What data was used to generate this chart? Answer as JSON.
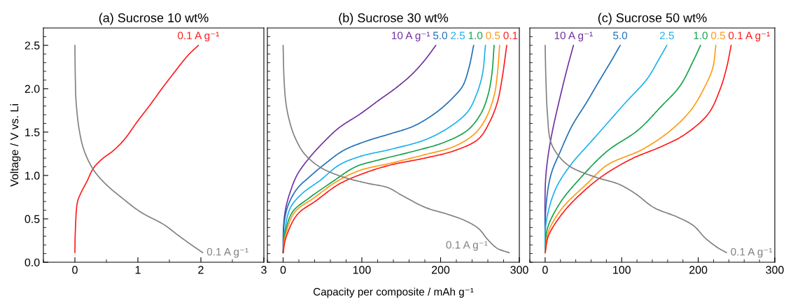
{
  "chart_data": [
    {
      "type": "line",
      "title": "(a) Sucrose 10 wt%",
      "ylabel": "Voltage / V vs. Li",
      "xlim": [
        -0.5,
        3
      ],
      "ylim": [
        0,
        2.7
      ],
      "xticks": [
        {
          "value": -0.5,
          "label": null
        },
        0,
        {
          "value": 0.5,
          "label": null
        },
        1,
        {
          "value": 1.5,
          "label": null
        },
        2,
        {
          "value": 2.5,
          "label": null
        },
        3
      ],
      "yticks": [
        {
          "value": 0,
          "label": "0.0"
        },
        {
          "value": 0.1,
          "label": null
        },
        {
          "value": 0.2,
          "label": null
        },
        {
          "value": 0.3,
          "label": null
        },
        {
          "value": 0.4,
          "label": null
        },
        {
          "value": 0.5,
          "label": "0.5"
        },
        {
          "value": 0.6,
          "label": null
        },
        {
          "value": 0.7,
          "label": null
        },
        {
          "value": 0.8,
          "label": null
        },
        {
          "value": 0.9,
          "label": null
        },
        {
          "value": 1,
          "label": "1.0"
        },
        {
          "value": 1.1,
          "label": null
        },
        {
          "value": 1.2,
          "label": null
        },
        {
          "value": 1.3,
          "label": null
        },
        {
          "value": 1.4,
          "label": null
        },
        {
          "value": 1.5,
          "label": "1.5"
        },
        {
          "value": 1.6,
          "label": null
        },
        {
          "value": 1.7,
          "label": null
        },
        {
          "value": 1.8,
          "label": null
        },
        {
          "value": 1.9,
          "label": null
        },
        {
          "value": 2,
          "label": "2.0"
        },
        {
          "value": 2.1,
          "label": null
        },
        {
          "value": 2.2,
          "label": null
        },
        {
          "value": 2.3,
          "label": null
        },
        {
          "value": 2.4,
          "label": null
        },
        {
          "value": 2.5,
          "label": "2.5"
        },
        {
          "value": 2.6,
          "label": null
        }
      ],
      "series": [
        {
          "name": "0.1 A g⁻¹",
          "color": "#ff1a1a",
          "x": [
            0,
            0.007,
            0.04,
            0.09,
            0.19,
            0.3,
            0.45,
            0.6,
            0.78,
            1.0,
            1.19,
            1.38,
            1.57,
            1.79,
            1.96
          ],
          "values": [
            0.11,
            0.36,
            0.69,
            0.79,
            0.93,
            1.09,
            1.2,
            1.28,
            1.41,
            1.63,
            1.81,
            2.0,
            2.18,
            2.38,
            2.5
          ]
        },
        {
          "name": "0.1 A g⁻¹",
          "color": "#808080",
          "x": [
            0,
            0.007,
            0.02,
            0.07,
            0.15,
            0.3,
            0.49,
            0.75,
            1.04,
            1.42,
            1.64,
            1.87,
            2.03
          ],
          "values": [
            2.5,
            2.11,
            1.84,
            1.52,
            1.28,
            1.06,
            0.9,
            0.74,
            0.58,
            0.43,
            0.31,
            0.19,
            0.11
          ]
        }
      ]
    },
    {
      "type": "line",
      "title": "(b) Sucrose 30 wt%",
      "xlabel": "Capacity per composite / mAh g⁻¹",
      "tick_labels": "x",
      "xlim": [
        -20,
        300
      ],
      "ylim": [
        0,
        2.7
      ],
      "xticks": [
        {
          "value": -20,
          "label": null
        },
        0,
        {
          "value": 20,
          "label": null
        },
        {
          "value": 40,
          "label": null
        },
        {
          "value": 60,
          "label": null
        },
        {
          "value": 80,
          "label": null
        },
        100,
        {
          "value": 120,
          "label": null
        },
        {
          "value": 140,
          "label": null
        },
        {
          "value": 160,
          "label": null
        },
        {
          "value": 180,
          "label": null
        },
        200,
        {
          "value": 220,
          "label": null
        },
        {
          "value": 240,
          "label": null
        },
        {
          "value": 260,
          "label": null
        },
        {
          "value": 280,
          "label": null
        },
        300
      ],
      "yticks": [
        {
          "value": 0,
          "label": null
        },
        {
          "value": 0.1,
          "label": null
        },
        {
          "value": 0.2,
          "label": null
        },
        {
          "value": 0.3,
          "label": null
        },
        {
          "value": 0.4,
          "label": null
        },
        {
          "value": 0.5,
          "label": null
        },
        {
          "value": 0.6,
          "label": null
        },
        {
          "value": 0.7,
          "label": null
        },
        {
          "value": 0.8,
          "label": null
        },
        {
          "value": 0.9,
          "label": null
        },
        {
          "value": 1,
          "label": null
        },
        {
          "value": 1.1,
          "label": null
        },
        {
          "value": 1.2,
          "label": null
        },
        {
          "value": 1.3,
          "label": null
        },
        {
          "value": 1.4,
          "label": null
        },
        {
          "value": 1.5,
          "label": null
        },
        {
          "value": 1.6,
          "label": null
        },
        {
          "value": 1.7,
          "label": null
        },
        {
          "value": 1.8,
          "label": null
        },
        {
          "value": 1.9,
          "label": null
        },
        {
          "value": 2,
          "label": null
        },
        {
          "value": 2.1,
          "label": null
        },
        {
          "value": 2.2,
          "label": null
        },
        {
          "value": 2.3,
          "label": null
        },
        {
          "value": 2.4,
          "label": null
        },
        {
          "value": 2.5,
          "label": null
        },
        {
          "value": 2.6,
          "label": null
        }
      ],
      "series": [
        {
          "name": "10 A g⁻¹",
          "color": "#7030a0",
          "x": [
            0,
            0.6,
            3.5,
            9.4,
            18,
            33,
            51,
            71,
            98,
            122,
            142,
            163,
            180,
            194
          ],
          "values": [
            0.11,
            0.42,
            0.63,
            0.82,
            1.01,
            1.2,
            1.38,
            1.55,
            1.71,
            1.87,
            2.0,
            2.16,
            2.33,
            2.5
          ]
        },
        {
          "name": "5.0",
          "color": "#1f6fb8",
          "x": [
            0,
            1.2,
            6.5,
            18,
            33,
            54,
            77,
            107,
            136,
            166,
            195,
            216,
            228,
            236,
            242
          ],
          "values": [
            0.11,
            0.44,
            0.66,
            0.85,
            0.98,
            1.14,
            1.29,
            1.4,
            1.48,
            1.57,
            1.73,
            1.9,
            2.03,
            2.24,
            2.5
          ]
        },
        {
          "name": "2.5",
          "color": "#1ab2ee",
          "x": [
            0,
            2,
            9.4,
            24,
            48,
            71,
            98,
            136,
            180,
            210,
            234,
            245,
            253,
            257
          ],
          "values": [
            0.11,
            0.36,
            0.63,
            0.79,
            0.95,
            1.12,
            1.22,
            1.3,
            1.41,
            1.55,
            1.73,
            1.92,
            2.16,
            2.5
          ]
        },
        {
          "name": "1.0",
          "color": "#13a24a",
          "x": [
            0,
            2,
            12,
            33,
            63,
            92,
            122,
            166,
            204,
            234,
            251,
            260,
            265,
            268
          ],
          "values": [
            0.11,
            0.31,
            0.58,
            0.74,
            0.93,
            1.1,
            1.18,
            1.28,
            1.38,
            1.52,
            1.71,
            1.92,
            2.16,
            2.5
          ]
        },
        {
          "name": "0.5",
          "color": "#ff9a14",
          "x": [
            0,
            2.7,
            15,
            39,
            68,
            98,
            136,
            180,
            216,
            242,
            257,
            268,
            272,
            275
          ],
          "values": [
            0.11,
            0.3,
            0.58,
            0.74,
            0.93,
            1.06,
            1.14,
            1.24,
            1.33,
            1.47,
            1.65,
            1.92,
            2.16,
            2.5
          ]
        },
        {
          "name": "0.1",
          "color": "#ff1a1a",
          "x": [
            0,
            3.5,
            18,
            42,
            71,
            101,
            136,
            180,
            219,
            248,
            263,
            272,
            278,
            284
          ],
          "values": [
            0.11,
            0.28,
            0.55,
            0.71,
            0.9,
            1.02,
            1.12,
            1.2,
            1.29,
            1.42,
            1.63,
            1.84,
            2.11,
            2.5
          ]
        },
        {
          "name": "0.1 A g⁻¹",
          "color": "#808080",
          "x": [
            0,
            1.2,
            3.5,
            8,
            15,
            27,
            48,
            77,
            107,
            133,
            151,
            181,
            210,
            231,
            248,
            260,
            272,
            287
          ],
          "values": [
            2.5,
            2.11,
            1.84,
            1.63,
            1.44,
            1.25,
            1.09,
            0.98,
            0.91,
            0.86,
            0.77,
            0.63,
            0.55,
            0.48,
            0.39,
            0.26,
            0.16,
            0.11
          ]
        }
      ]
    },
    {
      "type": "line",
      "title": "(c) Sucrose 50 wt%",
      "tick_labels": "x",
      "xlim": [
        -20,
        300
      ],
      "ylim": [
        0,
        2.7
      ],
      "xticks": [
        {
          "value": -20,
          "label": null
        },
        0,
        {
          "value": 20,
          "label": null
        },
        {
          "value": 40,
          "label": null
        },
        {
          "value": 60,
          "label": null
        },
        {
          "value": 80,
          "label": null
        },
        100,
        {
          "value": 120,
          "label": null
        },
        {
          "value": 140,
          "label": null
        },
        {
          "value": 160,
          "label": null
        },
        {
          "value": 180,
          "label": null
        },
        200,
        {
          "value": 220,
          "label": null
        },
        {
          "value": 240,
          "label": null
        },
        {
          "value": 260,
          "label": null
        },
        {
          "value": 280,
          "label": null
        },
        300
      ],
      "yticks": [
        {
          "value": 0,
          "label": null
        },
        {
          "value": 0.1,
          "label": null
        },
        {
          "value": 0.2,
          "label": null
        },
        {
          "value": 0.3,
          "label": null
        },
        {
          "value": 0.4,
          "label": null
        },
        {
          "value": 0.5,
          "label": null
        },
        {
          "value": 0.6,
          "label": null
        },
        {
          "value": 0.7,
          "label": null
        },
        {
          "value": 0.8,
          "label": null
        },
        {
          "value": 0.9,
          "label": null
        },
        {
          "value": 1,
          "label": null
        },
        {
          "value": 1.1,
          "label": null
        },
        {
          "value": 1.2,
          "label": null
        },
        {
          "value": 1.3,
          "label": null
        },
        {
          "value": 1.4,
          "label": null
        },
        {
          "value": 1.5,
          "label": null
        },
        {
          "value": 1.6,
          "label": null
        },
        {
          "value": 1.7,
          "label": null
        },
        {
          "value": 1.8,
          "label": null
        },
        {
          "value": 1.9,
          "label": null
        },
        {
          "value": 2,
          "label": null
        },
        {
          "value": 2.1,
          "label": null
        },
        {
          "value": 2.2,
          "label": null
        },
        {
          "value": 2.3,
          "label": null
        },
        {
          "value": 2.4,
          "label": null
        },
        {
          "value": 2.5,
          "label": null
        },
        {
          "value": 2.6,
          "label": null
        }
      ],
      "series": [
        {
          "name": "10 A g⁻¹",
          "color": "#7030a0",
          "x": [
            0,
            0.3,
            3,
            9,
            20,
            29,
            37
          ],
          "values": [
            0.11,
            0.9,
            1.17,
            1.49,
            1.92,
            2.24,
            2.5
          ]
        },
        {
          "name": "5.0",
          "color": "#1f6fb8",
          "x": [
            0,
            1,
            7.6,
            20,
            35,
            54,
            72,
            87,
            98
          ],
          "values": [
            0.11,
            0.63,
            1.01,
            1.28,
            1.57,
            1.84,
            2.11,
            2.33,
            2.5
          ]
        },
        {
          "name": "2.5",
          "color": "#1ab2ee",
          "x": [
            0,
            1.5,
            14,
            35,
            57,
            81,
            105,
            133,
            148,
            159
          ],
          "values": [
            0.11,
            0.47,
            0.85,
            1.14,
            1.36,
            1.6,
            1.84,
            2.11,
            2.33,
            2.5
          ]
        },
        {
          "name": "1.0",
          "color": "#13a24a",
          "x": [
            0,
            3,
            20,
            44,
            81,
            121,
            151,
            176,
            194,
            203
          ],
          "values": [
            0.11,
            0.39,
            0.69,
            0.95,
            1.28,
            1.52,
            1.79,
            2.03,
            2.33,
            2.5
          ]
        },
        {
          "name": "0.5",
          "color": "#ff9a14",
          "x": [
            0,
            4.6,
            23,
            54,
            81,
            127,
            164,
            191,
            209,
            219,
            223
          ],
          "values": [
            0.11,
            0.36,
            0.63,
            0.9,
            1.12,
            1.3,
            1.52,
            1.76,
            2.03,
            2.24,
            2.5
          ]
        },
        {
          "name": "0.1 A g⁻¹",
          "color": "#ff1a1a",
          "x": [
            0,
            4.6,
            26,
            57,
            81,
            115,
            151,
            182,
            213,
            228,
            237,
            243
          ],
          "values": [
            0.11,
            0.31,
            0.6,
            0.87,
            1.03,
            1.2,
            1.33,
            1.47,
            1.71,
            1.98,
            2.24,
            2.5
          ]
        },
        {
          "name": "0.1 A g⁻¹",
          "color": "#808080",
          "x": [
            0,
            1,
            3,
            7.6,
            20,
            35,
            66,
            96,
            118,
            142,
            173,
            194,
            209,
            225,
            237
          ],
          "values": [
            2.5,
            2.11,
            1.71,
            1.38,
            1.2,
            1.09,
            0.98,
            0.9,
            0.79,
            0.63,
            0.52,
            0.42,
            0.28,
            0.17,
            0.11
          ]
        }
      ]
    }
  ]
}
